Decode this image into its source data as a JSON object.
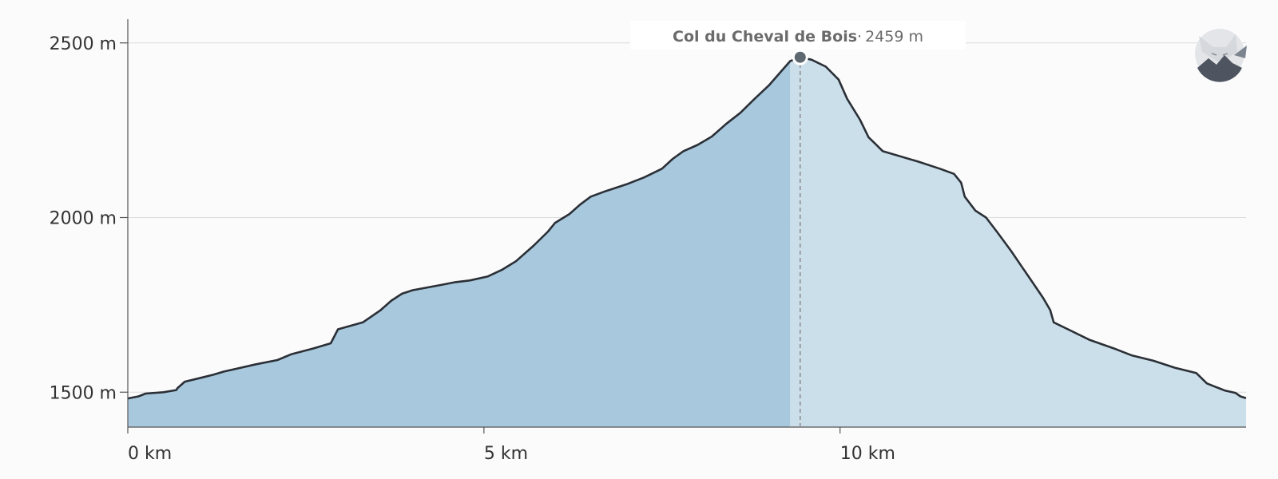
{
  "chart_data": {
    "type": "area",
    "xlim": [
      0,
      15.7
    ],
    "ylim": [
      1400,
      2600
    ],
    "x_ticks": [
      0,
      5,
      10
    ],
    "x_tick_labels": [
      "0 km",
      "5 km",
      "10 km"
    ],
    "y_ticks": [
      1500,
      2000,
      2500
    ],
    "y_tick_labels": [
      "1500 m",
      "2000 m",
      "2500 m"
    ],
    "grid": true,
    "highlight_until_km": 9.3,
    "points": [
      [
        0.0,
        1482
      ],
      [
        0.15,
        1488
      ],
      [
        0.25,
        1496
      ],
      [
        0.5,
        1500
      ],
      [
        0.68,
        1506
      ],
      [
        0.7,
        1512
      ],
      [
        0.8,
        1530
      ],
      [
        1.0,
        1540
      ],
      [
        1.2,
        1550
      ],
      [
        1.35,
        1559
      ],
      [
        1.5,
        1566
      ],
      [
        1.8,
        1580
      ],
      [
        2.1,
        1592
      ],
      [
        2.3,
        1609
      ],
      [
        2.6,
        1625
      ],
      [
        2.85,
        1640
      ],
      [
        2.95,
        1680
      ],
      [
        3.3,
        1700
      ],
      [
        3.55,
        1735
      ],
      [
        3.7,
        1762
      ],
      [
        3.85,
        1782
      ],
      [
        4.0,
        1792
      ],
      [
        4.4,
        1807
      ],
      [
        4.6,
        1815
      ],
      [
        4.8,
        1820
      ],
      [
        5.05,
        1831
      ],
      [
        5.25,
        1850
      ],
      [
        5.45,
        1875
      ],
      [
        5.7,
        1920
      ],
      [
        5.9,
        1960
      ],
      [
        6.0,
        1985
      ],
      [
        6.2,
        2010
      ],
      [
        6.35,
        2037
      ],
      [
        6.5,
        2060
      ],
      [
        6.7,
        2075
      ],
      [
        7.0,
        2095
      ],
      [
        7.25,
        2115
      ],
      [
        7.5,
        2140
      ],
      [
        7.65,
        2168
      ],
      [
        7.8,
        2190
      ],
      [
        8.0,
        2208
      ],
      [
        8.2,
        2232
      ],
      [
        8.4,
        2268
      ],
      [
        8.6,
        2300
      ],
      [
        8.8,
        2340
      ],
      [
        9.0,
        2378
      ],
      [
        9.2,
        2425
      ],
      [
        9.3,
        2448
      ],
      [
        9.44,
        2459
      ],
      [
        9.6,
        2452
      ],
      [
        9.8,
        2432
      ],
      [
        9.98,
        2395
      ],
      [
        10.1,
        2340
      ],
      [
        10.28,
        2280
      ],
      [
        10.4,
        2230
      ],
      [
        10.5,
        2210
      ],
      [
        10.6,
        2190
      ],
      [
        11.1,
        2160
      ],
      [
        11.4,
        2140
      ],
      [
        11.6,
        2125
      ],
      [
        11.7,
        2100
      ],
      [
        11.75,
        2060
      ],
      [
        11.9,
        2020
      ],
      [
        12.05,
        2000
      ],
      [
        12.2,
        1960
      ],
      [
        12.4,
        1905
      ],
      [
        12.55,
        1860
      ],
      [
        12.7,
        1815
      ],
      [
        12.85,
        1770
      ],
      [
        12.95,
        1735
      ],
      [
        13.0,
        1700
      ],
      [
        13.2,
        1680
      ],
      [
        13.5,
        1650
      ],
      [
        13.85,
        1625
      ],
      [
        14.1,
        1605
      ],
      [
        14.4,
        1590
      ],
      [
        14.7,
        1570
      ],
      [
        15.0,
        1555
      ],
      [
        15.15,
        1525
      ],
      [
        15.4,
        1505
      ],
      [
        15.55,
        1498
      ],
      [
        15.62,
        1488
      ],
      [
        15.7,
        1483
      ]
    ]
  },
  "tooltip": {
    "name": "Col du Cheval de Bois",
    "separator": "·",
    "value": "2459 m",
    "x_km": 9.44,
    "elevation_m": 2459
  },
  "logo": {
    "name": "fox-logo"
  },
  "colors": {
    "fill_highlight": "#a8c9dd",
    "fill_rest": "#cbdfea",
    "line": "#2b2f36",
    "grid": "#dcdcdc",
    "axis": "#555555",
    "marker": "#5e6870",
    "background": "#fbfbfb"
  }
}
